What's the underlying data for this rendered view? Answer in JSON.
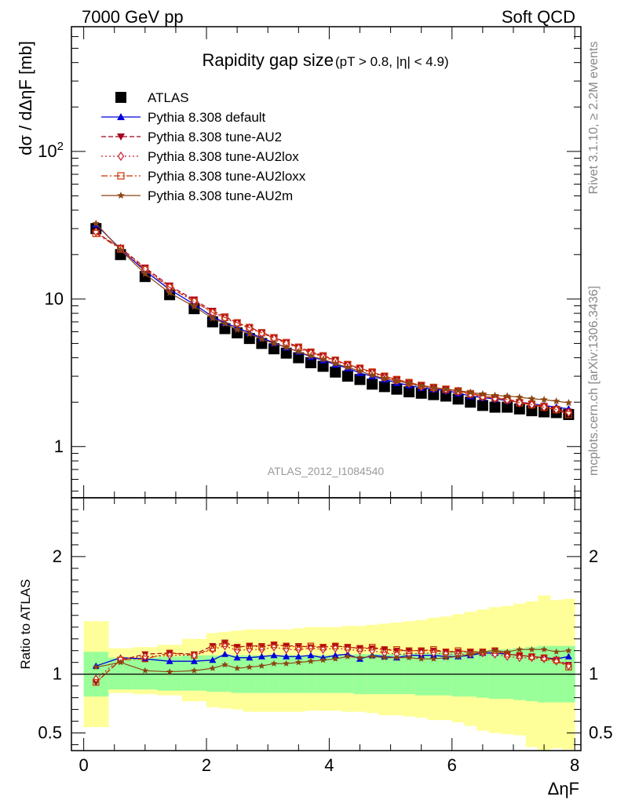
{
  "header": {
    "left": "7000 GeV pp",
    "right": "Soft QCD"
  },
  "side_labels": {
    "rivet": "Rivet 3.1.10, ≥ 2.2M events",
    "mcplots": "mcplots.cern.ch [arXiv:1306.3436]"
  },
  "analysis_id": "ATLAS_2012_I1084540",
  "colors": {
    "data": "#000000",
    "default": "#0000dd",
    "AU2": "#a50021",
    "AU2lox": "#c41f2f",
    "AU2loxx": "#cc3300",
    "AU2m": "#8b4513",
    "band_stat": "#99ff99",
    "band_total": "#ffff99"
  },
  "chart_data": [
    {
      "type": "scatter",
      "title": "Rapidity gap size",
      "subtitle": "(pT > 0.8, |η| < 4.9)",
      "xlabel": "ΔηF",
      "ylabel": "dσ / dΔηF [mb]",
      "yscale": "log",
      "xlim": [
        -0.2,
        8.1
      ],
      "ylim": [
        0.45,
        700
      ],
      "y_tick_labels": [
        "1",
        "10",
        "10²"
      ],
      "x": [
        0.2,
        0.6,
        1.0,
        1.4,
        1.8,
        2.1,
        2.3,
        2.5,
        2.7,
        2.9,
        3.1,
        3.3,
        3.5,
        3.7,
        3.9,
        4.1,
        4.3,
        4.5,
        4.7,
        4.9,
        5.1,
        5.3,
        5.5,
        5.7,
        5.9,
        6.1,
        6.3,
        6.5,
        6.7,
        6.9,
        7.1,
        7.3,
        7.5,
        7.7,
        7.9
      ],
      "legend_position": "top-left",
      "series": [
        {
          "name": "ATLAS",
          "marker": "filled-square",
          "line": "none",
          "values": [
            30,
            20,
            14.2,
            10.7,
            8.6,
            7.0,
            6.3,
            5.9,
            5.4,
            5.0,
            4.6,
            4.3,
            4.0,
            3.7,
            3.5,
            3.2,
            3.0,
            2.85,
            2.65,
            2.55,
            2.45,
            2.35,
            2.3,
            2.25,
            2.2,
            2.1,
            2.0,
            1.9,
            1.85,
            1.85,
            1.8,
            1.75,
            1.72,
            1.7,
            1.65
          ]
        },
        {
          "name": "Pythia 8.308 default",
          "marker": "triangle-up",
          "line": "solid",
          "values": [
            32.0,
            21.8,
            15.5,
            11.6,
            9.2,
            7.6,
            6.9,
            6.4,
            5.9,
            5.45,
            5.05,
            4.7,
            4.4,
            4.05,
            3.85,
            3.6,
            3.4,
            3.15,
            3.0,
            2.85,
            2.7,
            2.6,
            2.5,
            2.45,
            2.4,
            2.3,
            2.2,
            2.15,
            2.1,
            2.05,
            2.0,
            1.95,
            1.9,
            1.85,
            1.8
          ]
        },
        {
          "name": "Pythia 8.308 tune-AU2",
          "marker": "triangle-down",
          "line": "dashed",
          "values": [
            28.2,
            22.2,
            16.3,
            12.3,
            9.9,
            8.3,
            7.6,
            6.9,
            6.45,
            5.95,
            5.5,
            5.1,
            4.75,
            4.4,
            4.15,
            3.85,
            3.6,
            3.4,
            3.2,
            3.0,
            2.85,
            2.7,
            2.6,
            2.5,
            2.45,
            2.4,
            2.3,
            2.2,
            2.15,
            2.1,
            2.0,
            1.95,
            1.88,
            1.8,
            1.72
          ]
        },
        {
          "name": "Pythia 8.308 tune-AU2lox",
          "marker": "open-diamond",
          "line": "dotted",
          "values": [
            28.5,
            22.0,
            16.0,
            12.1,
            9.7,
            8.1,
            7.4,
            6.8,
            6.35,
            5.85,
            5.4,
            5.0,
            4.65,
            4.3,
            4.05,
            3.8,
            3.55,
            3.35,
            3.15,
            2.95,
            2.8,
            2.68,
            2.55,
            2.48,
            2.42,
            2.36,
            2.26,
            2.17,
            2.12,
            2.07,
            1.98,
            1.92,
            1.85,
            1.78,
            1.7
          ]
        },
        {
          "name": "Pythia 8.308 tune-AU2loxx",
          "marker": "open-square",
          "line": "dash-dot",
          "values": [
            27.8,
            21.8,
            15.8,
            12.0,
            9.6,
            8.1,
            7.5,
            6.9,
            6.4,
            5.9,
            5.45,
            5.05,
            4.7,
            4.35,
            4.1,
            3.85,
            3.6,
            3.4,
            3.2,
            3.0,
            2.85,
            2.72,
            2.6,
            2.52,
            2.45,
            2.38,
            2.28,
            2.2,
            2.14,
            2.08,
            1.98,
            1.92,
            1.85,
            1.78,
            1.65
          ]
        },
        {
          "name": "Pythia 8.308 tune-AU2m",
          "marker": "star",
          "line": "solid",
          "values": [
            32.5,
            21.5,
            14.8,
            11.0,
            8.9,
            7.4,
            6.8,
            6.2,
            5.8,
            5.35,
            5.0,
            4.7,
            4.4,
            4.1,
            3.9,
            3.65,
            3.45,
            3.25,
            3.05,
            2.9,
            2.78,
            2.68,
            2.58,
            2.5,
            2.45,
            2.4,
            2.33,
            2.27,
            2.22,
            2.2,
            2.16,
            2.11,
            2.08,
            2.03,
            1.98
          ]
        }
      ]
    },
    {
      "type": "scatter",
      "ylabel": "Ratio to ATLAS",
      "xlabel": "ΔηF",
      "xlim": [
        -0.2,
        8.1
      ],
      "ylim": [
        0.35,
        2.5
      ],
      "x_tick_labels": [
        "0",
        "2",
        "4",
        "6",
        "8"
      ],
      "y_tick_labels": [
        "0.5",
        "1",
        "2"
      ],
      "reference_line": 1,
      "bin_edges": [
        0,
        0.4,
        0.8,
        1.2,
        1.6,
        2.0,
        2.2,
        2.4,
        2.6,
        2.8,
        3.0,
        3.2,
        3.4,
        3.6,
        3.8,
        4.0,
        4.2,
        4.4,
        4.6,
        4.8,
        5.0,
        5.2,
        5.4,
        5.6,
        5.8,
        6.0,
        6.2,
        6.4,
        6.6,
        6.8,
        7.0,
        7.2,
        7.4,
        7.6,
        7.8,
        8.0
      ],
      "band_stat_low": [
        0.81,
        0.87,
        0.87,
        0.86,
        0.86,
        0.85,
        0.85,
        0.84,
        0.84,
        0.84,
        0.84,
        0.84,
        0.84,
        0.84,
        0.84,
        0.84,
        0.84,
        0.83,
        0.83,
        0.83,
        0.83,
        0.83,
        0.82,
        0.82,
        0.82,
        0.81,
        0.81,
        0.8,
        0.79,
        0.79,
        0.78,
        0.77,
        0.76,
        0.76,
        0.76
      ],
      "band_stat_high": [
        1.19,
        1.14,
        1.14,
        1.15,
        1.16,
        1.16,
        1.16,
        1.16,
        1.16,
        1.16,
        1.16,
        1.16,
        1.16,
        1.16,
        1.16,
        1.16,
        1.16,
        1.17,
        1.17,
        1.17,
        1.17,
        1.18,
        1.18,
        1.18,
        1.19,
        1.19,
        1.2,
        1.2,
        1.21,
        1.21,
        1.22,
        1.23,
        1.24,
        1.24,
        1.24
      ],
      "band_total_low": [
        0.55,
        0.84,
        0.83,
        0.82,
        0.77,
        0.72,
        0.71,
        0.7,
        0.68,
        0.68,
        0.68,
        0.68,
        0.68,
        0.69,
        0.69,
        0.69,
        0.68,
        0.68,
        0.67,
        0.65,
        0.65,
        0.64,
        0.63,
        0.61,
        0.61,
        0.59,
        0.56,
        0.52,
        0.5,
        0.49,
        0.48,
        0.38,
        0.33,
        0.37,
        0.36
      ],
      "band_total_high": [
        1.45,
        1.22,
        1.23,
        1.25,
        1.3,
        1.35,
        1.36,
        1.37,
        1.38,
        1.38,
        1.38,
        1.38,
        1.39,
        1.4,
        1.4,
        1.4,
        1.41,
        1.41,
        1.42,
        1.43,
        1.44,
        1.45,
        1.46,
        1.48,
        1.49,
        1.51,
        1.53,
        1.55,
        1.57,
        1.58,
        1.6,
        1.62,
        1.67,
        1.63,
        1.64
      ],
      "series": [
        {
          "name": "Pythia 8.308 default",
          "values": [
            1.07,
            1.14,
            1.13,
            1.11,
            1.11,
            1.12,
            1.17,
            1.14,
            1.14,
            1.15,
            1.16,
            1.15,
            1.15,
            1.16,
            1.14,
            1.16,
            1.17,
            1.13,
            1.16,
            1.15,
            1.14,
            1.16,
            1.16,
            1.16,
            1.15,
            1.15,
            1.16,
            1.18,
            1.18,
            1.17,
            1.16,
            1.15,
            1.14,
            1.13,
            1.15
          ]
        },
        {
          "name": "Pythia 8.308 tune-AU2",
          "values": [
            0.93,
            1.12,
            1.17,
            1.18,
            1.17,
            1.24,
            1.27,
            1.23,
            1.24,
            1.24,
            1.25,
            1.24,
            1.24,
            1.23,
            1.23,
            1.24,
            1.23,
            1.22,
            1.22,
            1.21,
            1.2,
            1.2,
            1.2,
            1.2,
            1.19,
            1.19,
            1.19,
            1.19,
            1.2,
            1.17,
            1.16,
            1.15,
            1.14,
            1.12,
            1.08
          ]
        },
        {
          "name": "Pythia 8.308 tune-AU2lox",
          "values": [
            0.96,
            1.13,
            1.15,
            1.16,
            1.16,
            1.21,
            1.24,
            1.2,
            1.21,
            1.21,
            1.23,
            1.21,
            1.21,
            1.22,
            1.21,
            1.22,
            1.21,
            1.2,
            1.2,
            1.18,
            1.17,
            1.17,
            1.18,
            1.18,
            1.17,
            1.17,
            1.17,
            1.18,
            1.17,
            1.15,
            1.14,
            1.14,
            1.13,
            1.11,
            1.07
          ]
        },
        {
          "name": "Pythia 8.308 tune-AU2loxx",
          "values": [
            0.93,
            1.12,
            1.13,
            1.18,
            1.16,
            1.22,
            1.26,
            1.23,
            1.24,
            1.23,
            1.25,
            1.24,
            1.23,
            1.24,
            1.23,
            1.24,
            1.23,
            1.22,
            1.23,
            1.21,
            1.21,
            1.2,
            1.2,
            1.21,
            1.19,
            1.2,
            1.19,
            1.19,
            1.2,
            1.17,
            1.16,
            1.15,
            1.14,
            1.12,
            1.06
          ]
        },
        {
          "name": "Pythia 8.308 tune-AU2m",
          "values": [
            1.06,
            1.1,
            1.03,
            1.02,
            1.03,
            1.05,
            1.08,
            1.05,
            1.06,
            1.07,
            1.09,
            1.09,
            1.1,
            1.11,
            1.12,
            1.13,
            1.15,
            1.14,
            1.15,
            1.14,
            1.14,
            1.14,
            1.13,
            1.13,
            1.14,
            1.15,
            1.17,
            1.19,
            1.2,
            1.19,
            1.21,
            1.21,
            1.21,
            1.19,
            1.2
          ]
        }
      ]
    }
  ]
}
